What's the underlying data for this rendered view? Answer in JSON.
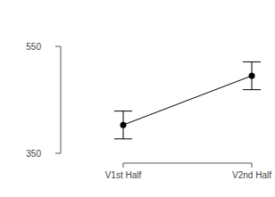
{
  "chart_data": {
    "type": "line",
    "categories": [
      "V1st Half",
      "V2nd Half"
    ],
    "values": [
      403,
      495
    ],
    "errors": [
      26,
      26
    ],
    "color": "#000000",
    "marker": "circle",
    "ylim": [
      350,
      550
    ],
    "yticks": [
      350,
      550
    ],
    "grid": false
  }
}
